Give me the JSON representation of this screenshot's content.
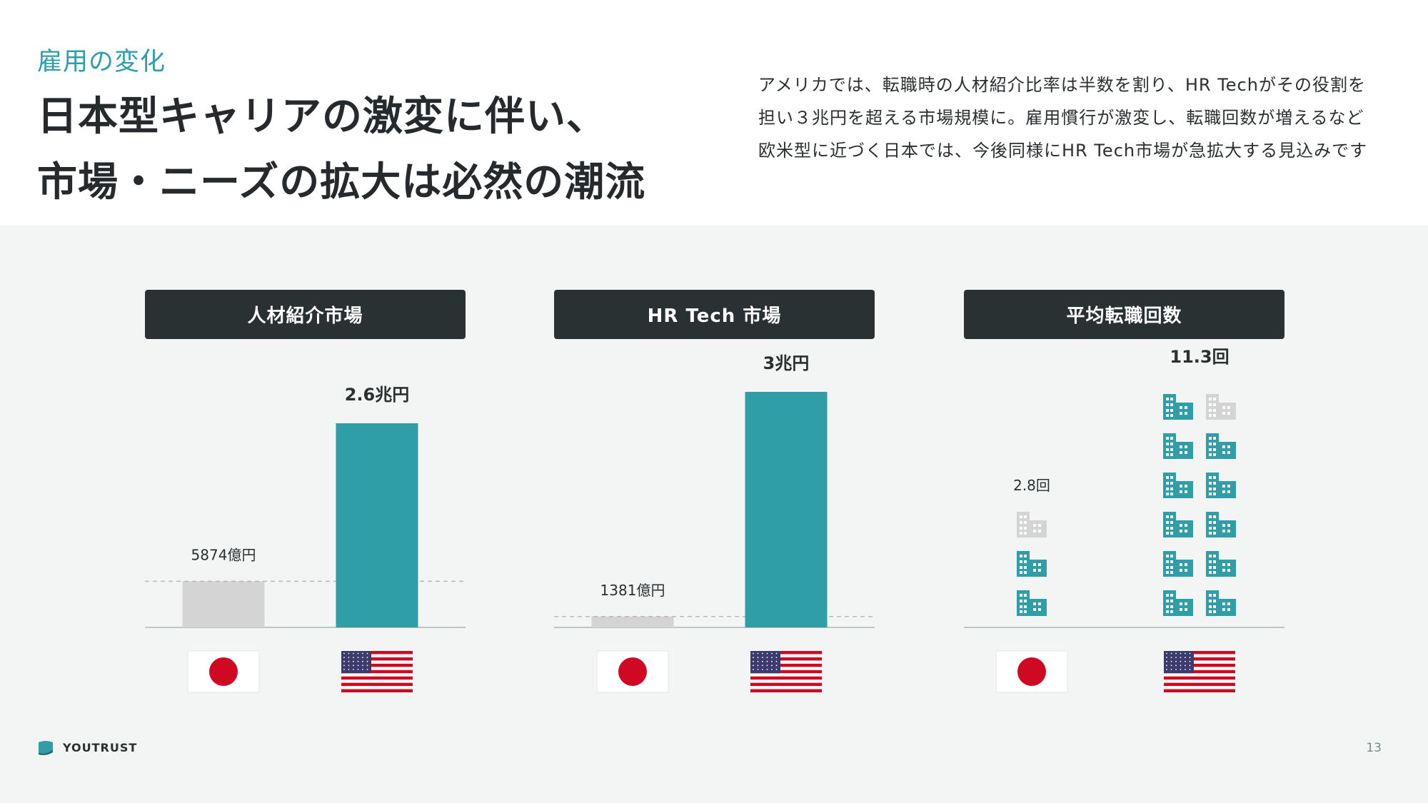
{
  "header": {
    "kicker": "雇用の変化",
    "headline_line1": "日本型キャリアの激変に伴い、",
    "headline_line2": "市場・ニーズの拡大は必然の潮流",
    "desc_line1": "アメリカでは、転職時の人材紹介比率は半数を割り、HR Techがその役割を",
    "desc_line2": "担い３兆円を超える市場規模に。雇用慣行が激変し、転職回数が増えるなど",
    "desc_line3": "欧米型に近づく日本では、今後同様にHR Tech市場が急拡大する見込みです"
  },
  "colors": {
    "accent": "#2f9ea7",
    "japan_bar": "#d4d4d4",
    "panel_header": "#2a3133",
    "flag_red": "#cf0921",
    "flag_blue": "#3c3b6e"
  },
  "chart_data": [
    {
      "type": "bar",
      "title": "人材紹介市場",
      "categories": [
        "Japan",
        "USA"
      ],
      "values": [
        5874,
        26000
      ],
      "unit": "億円",
      "data_labels": [
        "5874億円",
        "2.6兆円"
      ],
      "ylim": [
        0,
        33000
      ],
      "reference_line": "dashed at Japan value",
      "category_icons": [
        "japan-flag-icon",
        "usa-flag-icon"
      ]
    },
    {
      "type": "bar",
      "title": "HR Tech 市場",
      "categories": [
        "Japan",
        "USA"
      ],
      "values": [
        1381,
        30000
      ],
      "unit": "億円",
      "data_labels": [
        "1381億円",
        "3兆円"
      ],
      "ylim": [
        0,
        33000
      ],
      "reference_line": "dashed at Japan value",
      "category_icons": [
        "japan-flag-icon",
        "usa-flag-icon"
      ]
    },
    {
      "type": "pictograph",
      "title": "平均転職回数",
      "categories": [
        "Japan",
        "USA"
      ],
      "values": [
        2.8,
        11.3
      ],
      "unit": "回",
      "data_labels": [
        "2.8回",
        "11.3回"
      ],
      "icon": "building-icon",
      "icons_per_unit": 1,
      "category_icons": [
        "japan-flag-icon",
        "usa-flag-icon"
      ]
    }
  ],
  "footer": {
    "brand": "YOUTRUST",
    "page": "13"
  }
}
